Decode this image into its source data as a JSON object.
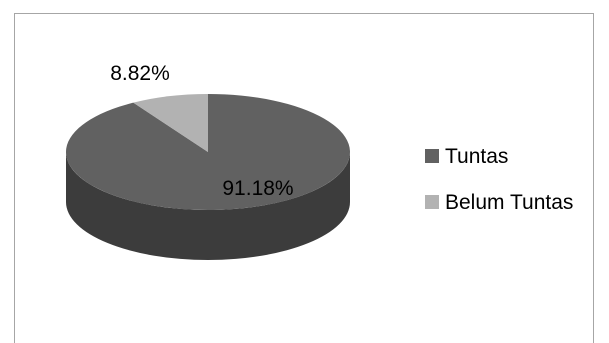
{
  "chart_data": {
    "type": "pie",
    "categories": [
      "Tuntas",
      "Belum Tuntas"
    ],
    "values": [
      91.18,
      8.82
    ],
    "data_labels": [
      "91.18%",
      "8.82%"
    ],
    "colors": [
      "#616161",
      "#b2b2b2"
    ],
    "three_d": true,
    "legend": {
      "position": "right",
      "items": [
        "Tuntas",
        "Belum Tuntas"
      ]
    }
  }
}
